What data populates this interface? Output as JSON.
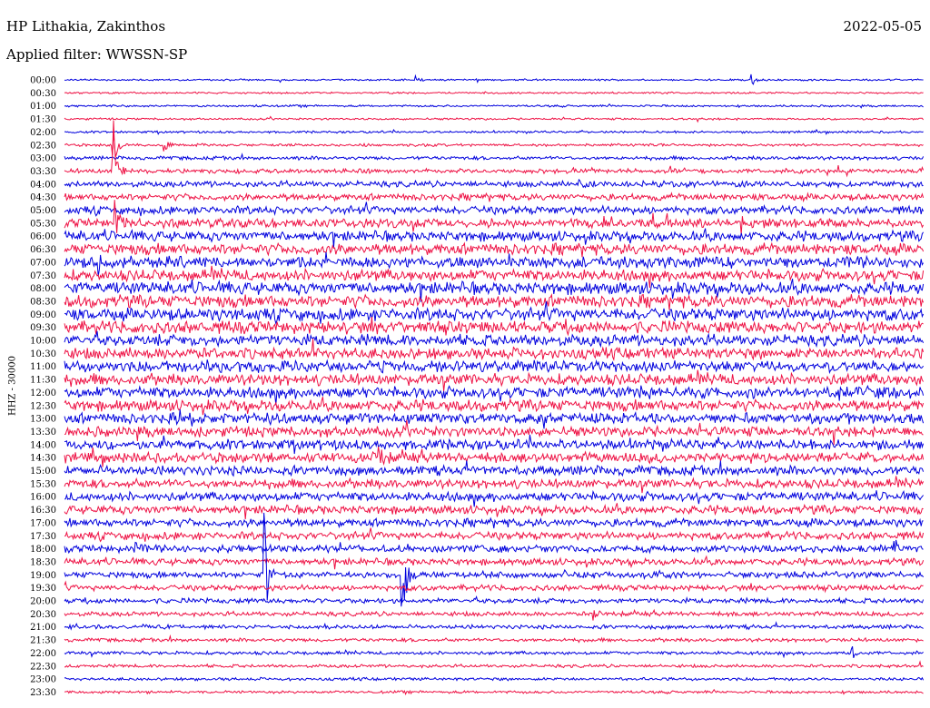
{
  "header": {
    "station": "HP Lithakia, Zakinthos",
    "date": "2022-05-05",
    "filter": "Applied filter: WWSSN-SP"
  },
  "channel_label": "HHZ - 30000",
  "chart_data": {
    "type": "line",
    "title": "HP Lithakia, Zakinthos",
    "subtitle": "Applied filter: WWSSN-SP",
    "ylabel": "HHZ - 30000",
    "row_labels": [
      "00:00",
      "00:30",
      "01:00",
      "01:30",
      "02:00",
      "02:30",
      "03:00",
      "03:30",
      "04:00",
      "04:30",
      "05:00",
      "05:30",
      "06:00",
      "06:30",
      "07:00",
      "07:30",
      "08:00",
      "08:30",
      "09:00",
      "09:30",
      "10:00",
      "10:30",
      "11:00",
      "11:30",
      "12:00",
      "12:30",
      "13:00",
      "13:30",
      "14:00",
      "14:30",
      "15:00",
      "15:30",
      "16:00",
      "16:30",
      "17:00",
      "17:30",
      "18:00",
      "18:30",
      "19:00",
      "19:30",
      "20:00",
      "20:30",
      "21:00",
      "21:30",
      "22:00",
      "22:30",
      "23:00",
      "23:30"
    ],
    "minutes_per_row": 30,
    "colors": [
      "#0000dd",
      "#ee1144"
    ],
    "noise_amplitude": [
      0.8,
      0.8,
      0.9,
      0.9,
      1,
      1.2,
      1.6,
      2,
      2.6,
      3,
      3.5,
      4,
      4.5,
      5,
      5,
      5,
      5.5,
      5.5,
      5.5,
      5.5,
      5,
      5,
      5,
      5,
      5,
      5,
      4.8,
      4.5,
      4.5,
      4.5,
      4.2,
      4,
      4,
      3.8,
      3.6,
      3.4,
      3.2,
      3,
      2.8,
      2.5,
      2.2,
      2,
      1.8,
      1.6,
      1.5,
      1.4,
      1.3,
      1.2
    ],
    "events": [
      {
        "row": 0,
        "minute": 12.3,
        "amp": 4
      },
      {
        "row": 0,
        "minute": 24,
        "amp": 8
      },
      {
        "row": 4,
        "minute": 34.5,
        "amp": 12
      },
      {
        "row": 5,
        "minute": 3.5,
        "amp": 8
      },
      {
        "row": 2,
        "minute": 34,
        "amp": 6
      },
      {
        "row": 8,
        "minute": 18,
        "amp": 8
      },
      {
        "row": 8,
        "minute": 36.5,
        "amp": 10
      },
      {
        "row": 8,
        "minute": 51,
        "amp": 12
      },
      {
        "row": 7,
        "minute": 39.5,
        "amp": 8
      },
      {
        "row": 5,
        "minute": 1.7,
        "amp": 40
      },
      {
        "row": 7,
        "minute": 1.7,
        "amp": 60
      },
      {
        "row": 11,
        "minute": 1.8,
        "amp": 20
      },
      {
        "row": 12,
        "minute": 49,
        "amp": 12
      },
      {
        "row": 14,
        "minute": 1.2,
        "amp": 12
      },
      {
        "row": 22,
        "minute": 5,
        "amp": 14
      },
      {
        "row": 24,
        "minute": 20,
        "amp": 12
      },
      {
        "row": 26,
        "minute": 4,
        "amp": 10
      },
      {
        "row": 29,
        "minute": 11,
        "amp": 14
      },
      {
        "row": 32,
        "minute": 52.5,
        "amp": 16
      },
      {
        "row": 34,
        "minute": 32.5,
        "amp": 12
      },
      {
        "row": 36,
        "minute": 2.5,
        "amp": 10
      },
      {
        "row": 36,
        "minute": 29,
        "amp": 10
      },
      {
        "row": 36,
        "minute": 38.5,
        "amp": 12
      },
      {
        "row": 38,
        "minute": 7,
        "amp": 70
      },
      {
        "row": 38,
        "minute": 11.8,
        "amp": 70
      },
      {
        "row": 40,
        "minute": 48.7,
        "amp": 12
      },
      {
        "row": 41,
        "minute": 18.5,
        "amp": 8
      },
      {
        "row": 42,
        "minute": 33.5,
        "amp": 10
      },
      {
        "row": 43,
        "minute": 46,
        "amp": 8
      },
      {
        "row": 44,
        "minute": 27.5,
        "amp": 10
      },
      {
        "row": 44,
        "minute": 31,
        "amp": 10
      },
      {
        "row": 44,
        "minute": 43.5,
        "amp": 10
      },
      {
        "row": 46,
        "minute": 38.5,
        "amp": 6
      },
      {
        "row": 47,
        "minute": 40,
        "amp": 6
      }
    ]
  }
}
